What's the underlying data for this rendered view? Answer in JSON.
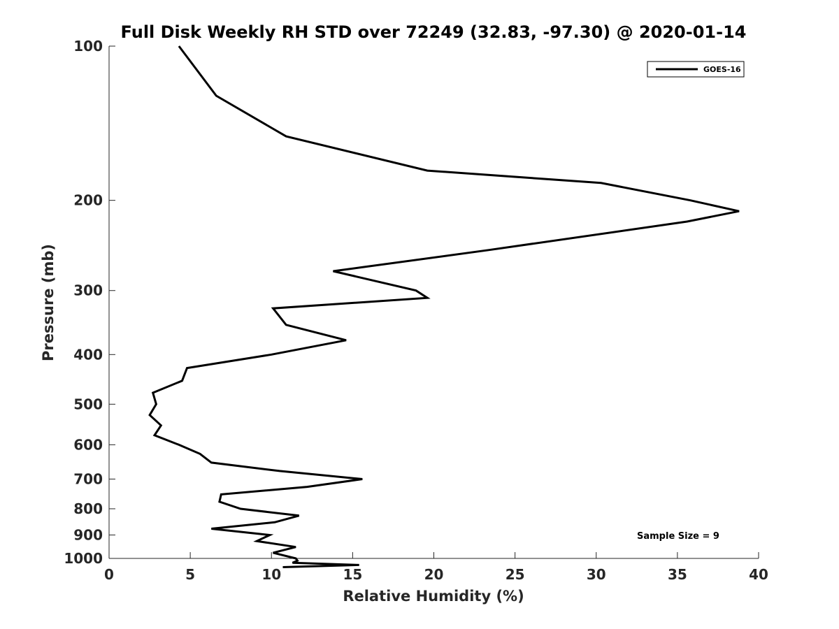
{
  "chart_data": {
    "type": "line",
    "title": "Full Disk Weekly RH STD over 72249 (32.83, -97.30) @ 2020-01-14",
    "xlabel": "Relative Humidity (%)",
    "ylabel": "Pressure (mb)",
    "xlim": [
      0,
      40
    ],
    "ylim": [
      100,
      1000
    ],
    "y_scale": "log",
    "y_reversed": true,
    "xticks": [
      0,
      5,
      10,
      15,
      20,
      25,
      30,
      35,
      40
    ],
    "xtick_labels": [
      "0",
      "5",
      "10",
      "15",
      "20",
      "25",
      "30",
      "35",
      "40"
    ],
    "yticks": [
      100,
      200,
      300,
      400,
      500,
      600,
      700,
      800,
      900,
      1000
    ],
    "ytick_labels": [
      "100",
      "200",
      "300",
      "400",
      "500",
      "600",
      "700",
      "800",
      "900",
      "1000"
    ],
    "grid": false,
    "legend_position": "top-right",
    "series": [
      {
        "name": "GOES-16",
        "color": "#000000",
        "x": [
          4.3,
          6.6,
          10.9,
          19.6,
          30.3,
          35.8,
          38.8,
          35.6,
          23.4,
          13.8,
          18.9,
          19.6,
          10.1,
          10.9,
          14.6,
          10.0,
          4.8,
          4.5,
          2.7,
          2.9,
          2.5,
          3.2,
          2.8,
          4.3,
          5.6,
          6.3,
          10.5,
          15.6,
          12.2,
          6.9,
          6.8,
          8.1,
          11.7,
          10.2,
          6.3,
          9.9,
          9.1,
          11.5,
          10.1,
          11.5,
          11.6,
          11.3,
          15.4,
          10.7
        ],
        "y": [
          100,
          125,
          150,
          175,
          185,
          200,
          210,
          220,
          250,
          275,
          300,
          310,
          325,
          350,
          375,
          400,
          425,
          450,
          475,
          500,
          525,
          550,
          575,
          600,
          625,
          650,
          675,
          700,
          725,
          750,
          775,
          800,
          825,
          850,
          875,
          900,
          925,
          950,
          975,
          1000,
          1010,
          1020,
          1030,
          1040
        ]
      }
    ],
    "annotations": [
      "Sample Size = 9"
    ]
  }
}
